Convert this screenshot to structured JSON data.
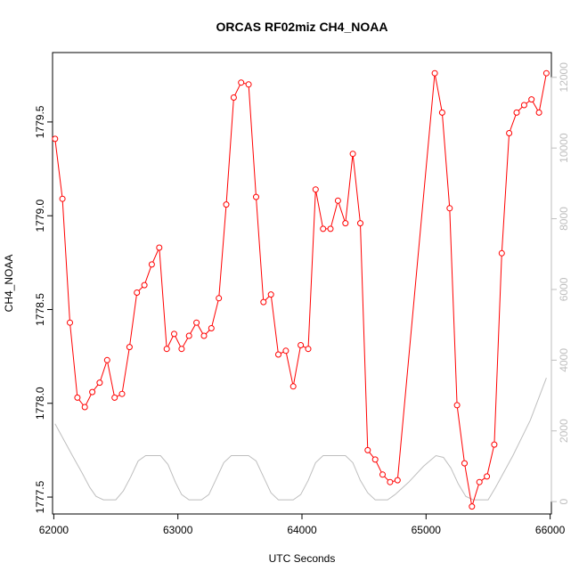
{
  "chart_data": {
    "type": "line",
    "title": "ORCAS RF02miz CH4_NOAA",
    "xlabel": "UTC Seconds",
    "ylabel": "CH4_NOAA",
    "xlim": [
      61990,
      66010
    ],
    "ylim": [
      1777.41,
      1779.87
    ],
    "y2lim": [
      -350,
      12700
    ],
    "x_ticks": [
      62000,
      63000,
      64000,
      65000,
      66000
    ],
    "y_ticks": [
      1777.5,
      1778.0,
      1778.5,
      1779.0,
      1779.5
    ],
    "y_tick_labels": [
      "1777.5",
      "1778.0",
      "1778.5",
      "1779.0",
      "1779.5"
    ],
    "y2_ticks": [
      0,
      2000,
      4000,
      6000,
      8000,
      10000,
      12000
    ],
    "grid": false,
    "colors": {
      "ch4": "#ff0000",
      "altitude": "#bebebe",
      "axis": "#000000"
    },
    "series": [
      {
        "key": "ch4",
        "axis": "left",
        "markers": "open-circle",
        "x": [
          62010,
          62070,
          62130,
          62190,
          62250,
          62310,
          62370,
          62430,
          62490,
          62550,
          62610,
          62670,
          62730,
          62790,
          62850,
          62910,
          62970,
          63030,
          63090,
          63150,
          63210,
          63270,
          63330,
          63390,
          63450,
          63510,
          63570,
          63630,
          63690,
          63750,
          63810,
          63870,
          63930,
          63990,
          64050,
          64110,
          64170,
          64230,
          64290,
          64350,
          64410,
          64470,
          64530,
          64590,
          64650,
          64710,
          64770,
          65070,
          65130,
          65190,
          65250,
          65310,
          65370,
          65430,
          65490,
          65550,
          65610,
          65670,
          65730,
          65790,
          65850,
          65910,
          65970
        ],
        "y": [
          1779.41,
          1779.09,
          1778.43,
          1778.03,
          1777.98,
          1778.06,
          1778.11,
          1778.23,
          1778.03,
          1778.05,
          1778.3,
          1778.59,
          1778.63,
          1778.74,
          1778.83,
          1778.29,
          1778.37,
          1778.29,
          1778.36,
          1778.43,
          1778.36,
          1778.4,
          1778.56,
          1779.06,
          1779.63,
          1779.71,
          1779.7,
          1779.1,
          1778.54,
          1778.58,
          1778.26,
          1778.28,
          1778.09,
          1778.31,
          1778.29,
          1779.14,
          1778.93,
          1778.93,
          1779.08,
          1778.96,
          1779.33,
          1778.96,
          1777.75,
          1777.7,
          1777.62,
          1777.58,
          1777.59,
          1779.76,
          1779.55,
          1779.04,
          1777.99,
          1777.68,
          1777.45,
          1777.58,
          1777.61,
          1777.78,
          1778.8,
          1779.44,
          1779.55,
          1779.59,
          1779.62,
          1779.55,
          1779.76
        ]
      },
      {
        "key": "altitude",
        "axis": "right",
        "markers": "none",
        "x": [
          62010,
          62150,
          62230,
          62290,
          62340,
          62400,
          62500,
          62560,
          62620,
          62680,
          62740,
          62860,
          62920,
          62980,
          63030,
          63090,
          63190,
          63250,
          63310,
          63370,
          63430,
          63570,
          63630,
          63690,
          63750,
          63810,
          63930,
          63990,
          64050,
          64110,
          64170,
          64230,
          64350,
          64410,
          64470,
          64530,
          64590,
          64690,
          64750,
          64860,
          64980,
          65080,
          65140,
          65200,
          65260,
          65320,
          65380,
          65500,
          65560,
          65700,
          65840,
          65970
        ],
        "y": [
          2200,
          1300,
          800,
          400,
          150,
          50,
          50,
          300,
          700,
          1150,
          1300,
          1300,
          1050,
          550,
          200,
          50,
          50,
          200,
          650,
          1100,
          1300,
          1300,
          1150,
          700,
          250,
          50,
          50,
          200,
          600,
          1100,
          1300,
          1300,
          1300,
          1100,
          600,
          250,
          50,
          50,
          200,
          550,
          1000,
          1300,
          1250,
          950,
          500,
          150,
          50,
          50,
          400,
          1300,
          2300,
          3500
        ]
      }
    ]
  }
}
